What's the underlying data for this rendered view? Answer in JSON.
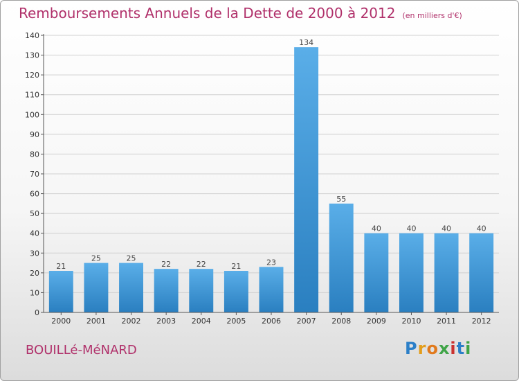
{
  "header": {
    "title": "Remboursements Annuels de la Dette de 2000 à 2012",
    "unit": "(en milliers d'€)"
  },
  "footer": {
    "town": "BOUILLé-MéNARD",
    "logo": [
      "P",
      "r",
      "o",
      "x",
      "i",
      "t",
      "i"
    ]
  },
  "colors": {
    "bar_top": "#5aaee8",
    "bar_bottom": "#2a7fc0",
    "title": "#b0306a",
    "grid": "#d0d0d0"
  },
  "chart_data": {
    "type": "bar",
    "title": "Remboursements Annuels de la Dette de 2000 à 2012",
    "xlabel": "",
    "ylabel": "",
    "categories": [
      "2000",
      "2001",
      "2002",
      "2003",
      "2004",
      "2005",
      "2006",
      "2007",
      "2008",
      "2009",
      "2010",
      "2011",
      "2012"
    ],
    "values": [
      21,
      25,
      25,
      22,
      22,
      21,
      23,
      134,
      55,
      40,
      40,
      40,
      40
    ],
    "ylim": [
      0,
      140
    ],
    "yticks": [
      0,
      10,
      20,
      30,
      40,
      50,
      60,
      70,
      80,
      90,
      100,
      110,
      120,
      130,
      140
    ],
    "grid": true,
    "legend": "none"
  }
}
